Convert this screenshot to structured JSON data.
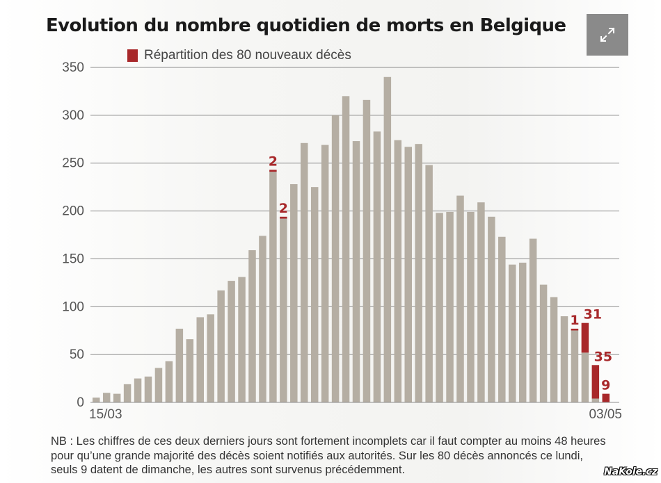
{
  "chart_data": {
    "type": "bar",
    "title": "Evolution du nombre quotidien de morts en Belgique",
    "legend": [
      {
        "name": "Répartition des 80 nouveaux décès",
        "color": "#a8282a"
      }
    ],
    "xlabel": "",
    "ylabel": "",
    "x_tick_labels": [
      "15/03",
      "03/05"
    ],
    "y_ticks": [
      0,
      50,
      100,
      150,
      200,
      250,
      300,
      350
    ],
    "ylim": [
      0,
      350
    ],
    "grid": "horizontal",
    "base_color": "#b5aea3",
    "accent_color": "#a8282a",
    "series": [
      {
        "name": "",
        "values": [
          5,
          10,
          9,
          19,
          25,
          27,
          36,
          43,
          77,
          66,
          89,
          92,
          117,
          127,
          131,
          159,
          174,
          241,
          192,
          228,
          271,
          225,
          269,
          300,
          320,
          273,
          316,
          283,
          340,
          274,
          267,
          270,
          248,
          198,
          199,
          216,
          199,
          209,
          194,
          173,
          144,
          146,
          171,
          123,
          110,
          90,
          76,
          52,
          4,
          0
        ]
      },
      {
        "name": "Répartition des 80 nouveaux décès",
        "values": [
          0,
          0,
          0,
          0,
          0,
          0,
          0,
          0,
          0,
          0,
          0,
          0,
          0,
          0,
          0,
          0,
          0,
          2,
          2,
          0,
          0,
          0,
          0,
          0,
          0,
          0,
          0,
          0,
          0,
          0,
          0,
          0,
          0,
          0,
          0,
          0,
          0,
          0,
          0,
          0,
          0,
          0,
          0,
          0,
          0,
          0,
          1,
          31,
          35,
          9
        ]
      }
    ],
    "data_labels": [
      "2",
      "2",
      "1",
      "31",
      "35",
      "9"
    ]
  },
  "note": "NB : Les chiffres de ces deux derniers jours sont fortement incomplets car il faut compter au moins 48 heures pour qu’une grande majorité des décès soient notifiés aux autorités. Sur les 80 décès annoncés ce lundi, seuls 9 datent de dimanche, les autres sont survenus précédemment.",
  "expand_icon": "expand-arrows-icon",
  "watermark": "NaKole.cz"
}
